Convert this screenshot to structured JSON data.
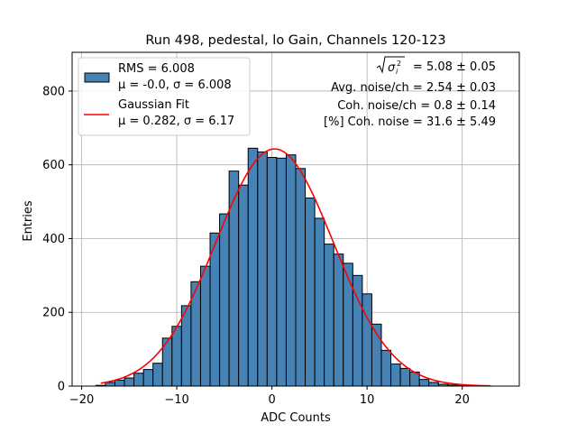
{
  "chart_data": {
    "type": "bar",
    "title": "Run 498, pedestal, lo Gain, Channels 120-123",
    "xlabel": "ADC Counts",
    "ylabel": "Entries",
    "xlim": [
      -21.0,
      26.0
    ],
    "ylim": [
      0,
      905
    ],
    "xticks": [
      -20,
      -10,
      0,
      10,
      20
    ],
    "xtick_labels": [
      "−20",
      "−10",
      "0",
      "10",
      "20"
    ],
    "yticks": [
      0,
      200,
      400,
      600,
      800
    ],
    "ytick_labels": [
      "0",
      "200",
      "400",
      "600",
      "800"
    ],
    "grid": true,
    "legend_position": "top-left",
    "bin_width": 1.0,
    "bins": [
      {
        "x": -18,
        "value": 2
      },
      {
        "x": -17,
        "value": 10
      },
      {
        "x": -16,
        "value": 16
      },
      {
        "x": -15,
        "value": 22
      },
      {
        "x": -14,
        "value": 35
      },
      {
        "x": -13,
        "value": 45
      },
      {
        "x": -12,
        "value": 62
      },
      {
        "x": -11,
        "value": 130
      },
      {
        "x": -10,
        "value": 162
      },
      {
        "x": -9,
        "value": 218
      },
      {
        "x": -8,
        "value": 283
      },
      {
        "x": -7,
        "value": 325
      },
      {
        "x": -6,
        "value": 415
      },
      {
        "x": -5,
        "value": 467
      },
      {
        "x": -4,
        "value": 583
      },
      {
        "x": -3,
        "value": 545
      },
      {
        "x": -2,
        "value": 645
      },
      {
        "x": -1,
        "value": 635
      },
      {
        "x": 0,
        "value": 620
      },
      {
        "x": 1,
        "value": 618
      },
      {
        "x": 2,
        "value": 627
      },
      {
        "x": 3,
        "value": 590
      },
      {
        "x": 4,
        "value": 510
      },
      {
        "x": 5,
        "value": 455
      },
      {
        "x": 6,
        "value": 385
      },
      {
        "x": 7,
        "value": 358
      },
      {
        "x": 8,
        "value": 333
      },
      {
        "x": 9,
        "value": 300
      },
      {
        "x": 10,
        "value": 250
      },
      {
        "x": 11,
        "value": 168
      },
      {
        "x": 12,
        "value": 97
      },
      {
        "x": 13,
        "value": 60
      },
      {
        "x": 14,
        "value": 48
      },
      {
        "x": 15,
        "value": 38
      },
      {
        "x": 16,
        "value": 18
      },
      {
        "x": 17,
        "value": 10
      },
      {
        "x": 18,
        "value": 5
      },
      {
        "x": 19,
        "value": 3
      },
      {
        "x": 20,
        "value": 2
      },
      {
        "x": 21,
        "value": 1
      },
      {
        "x": 22,
        "value": 1
      }
    ],
    "fit": {
      "mu": 0.282,
      "sigma": 6.17,
      "amplitude": 643,
      "x_range": [
        -18.0,
        23.0
      ],
      "color": "#ff0000"
    },
    "bar_color": "#4682b4",
    "bar_edge_color": "#000000",
    "legend": [
      {
        "kind": "patch",
        "line1": "RMS = 6.008",
        "line2": "μ = -0.0, σ = 6.008",
        "color": "#4682b4"
      },
      {
        "kind": "line",
        "line1": "Gaussian Fit",
        "line2": "μ = 0.282, σ = 6.17",
        "color": "#ff0000"
      }
    ],
    "annotations": [
      {
        "prefix": "",
        "sqrt_term": "σ",
        "sqrt_sup": "2",
        "sqrt_sub": "i",
        "text": " = 5.08 ± 0.05"
      },
      {
        "text": "Avg. noise/ch = 2.54 ± 0.03"
      },
      {
        "text": "Coh. noise/ch = 0.8 ± 0.14"
      },
      {
        "text": "[%] Coh. noise = 31.6 ± 5.49"
      }
    ]
  }
}
